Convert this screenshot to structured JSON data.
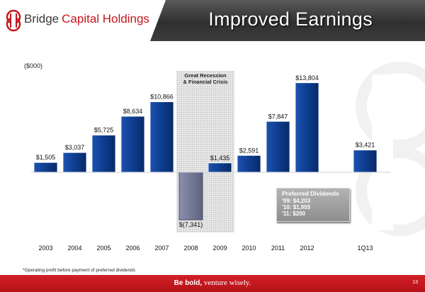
{
  "brand": {
    "name_part1": "Bridge",
    "name_part2": "Capital Holdings",
    "logo_icon": "bridge-logo-icon",
    "accent_color": "#c4161c"
  },
  "header": {
    "title": "Improved Earnings"
  },
  "callout": {
    "title": "Preferred Dividends",
    "lines": [
      "'09: $4,203",
      "'10: $1,955",
      "'11: $200"
    ]
  },
  "footnote": "*Operating profit before payment of preferred dividends",
  "footer": {
    "tagline_bold": "Be bold,",
    "tagline_rest": " venture wisely.",
    "page_number": "13"
  },
  "chart_data": {
    "type": "bar",
    "ylabel": "($000)",
    "categories": [
      "2003",
      "2004",
      "2005",
      "2006",
      "2007",
      "2008",
      "2009",
      "2010",
      "2011",
      "2012",
      "1Q13"
    ],
    "values": [
      1505,
      3037,
      5725,
      8634,
      10866,
      -7341,
      1435,
      2591,
      7847,
      13804,
      3421
    ],
    "value_labels": [
      "$1,505",
      "$3,037",
      "$5,725",
      "$8,634",
      "$10,866",
      "$(7,341)",
      "$1,435",
      "$2,591",
      "$7,847",
      "$13,804",
      "$3,421"
    ],
    "highlight": {
      "label_line1": "Great Recession",
      "label_line2": "& Financial Crisis",
      "from": "2008",
      "to": "2009"
    },
    "ylim": [
      -9000,
      15000
    ],
    "grid": false,
    "colors": {
      "positive": "#0e3d8f",
      "negative": "#6e7390",
      "crisis_band": "#d9d9d9"
    }
  }
}
